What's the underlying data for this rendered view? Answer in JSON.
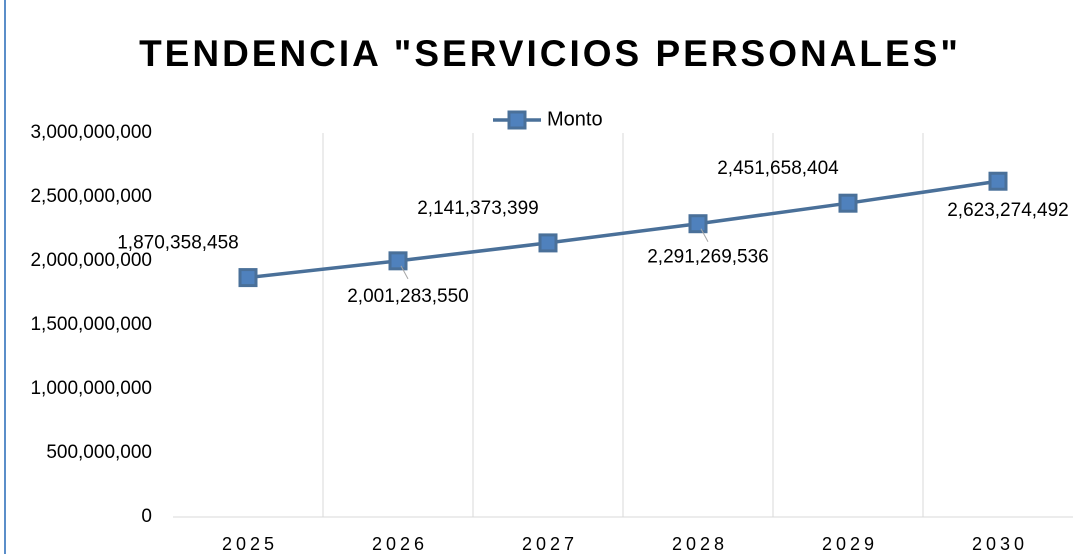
{
  "chart_data": {
    "type": "line",
    "title": "TENDENCIA \"SERVICIOS PERSONALES\"",
    "categories": [
      "2025",
      "2026",
      "2027",
      "2028",
      "2029",
      "2030"
    ],
    "series": [
      {
        "name": "Monto",
        "color": "#4a7099",
        "marker_color": "#4f81bd",
        "values": [
          1870358458,
          2001283550,
          2141373399,
          2291269536,
          2451658404,
          2623274492
        ],
        "value_labels": [
          "1,870,358,458",
          "2,001,283,550",
          "2,141,373,399",
          "2,291,269,536",
          "2,451,658,404",
          "2,623,274,492"
        ]
      }
    ],
    "ylim": [
      0,
      3000000000
    ],
    "yticks": [
      0,
      {
        "value": 500000000,
        "label": "500,000,000"
      },
      {
        "value": 1000000000,
        "label": "1,000,000,000"
      },
      {
        "value": 1500000000,
        "label": "1,500,000,000"
      },
      {
        "value": 2000000000,
        "label": "2,000,000,000"
      },
      {
        "value": 2500000000,
        "label": "2,500,000,000"
      },
      {
        "value": 3000000000,
        "label": "3,000,000,000"
      }
    ],
    "grid": "vertical",
    "legend": "top"
  }
}
